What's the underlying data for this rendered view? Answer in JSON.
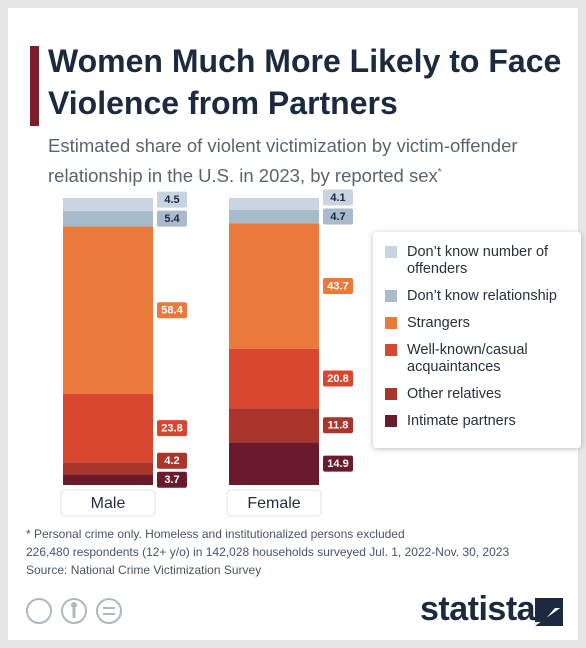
{
  "chart_data": {
    "type": "stacked_bar",
    "title": "Women Much More Likely to Face Violence from Partners",
    "subtitle": "Estimated share of violent victimization by victim-offender relationship in the U.S. in 2023, by reported sex",
    "subtitle_mark": "*",
    "categories": [
      "Male",
      "Female"
    ],
    "series": [
      {
        "name": "Don’t know number of offenders",
        "color": "#c8d4df",
        "values": [
          4.5,
          4.1
        ]
      },
      {
        "name": "Don’t know relationship",
        "color": "#a9bbca",
        "values": [
          5.4,
          4.7
        ]
      },
      {
        "name": "Strangers",
        "color": "#ea7a3b",
        "values": [
          58.4,
          43.7
        ]
      },
      {
        "name": "Well-known/casual acquaintances",
        "color": "#d9462f",
        "values": [
          23.8,
          20.8
        ]
      },
      {
        "name": "Other relatives",
        "color": "#a9352b",
        "values": [
          4.2,
          11.8
        ]
      },
      {
        "name": "Intimate partners",
        "color": "#6a1a2b",
        "values": [
          3.7,
          14.9
        ]
      }
    ],
    "legend": "right",
    "notes": [
      "* Personal crime only. Homeless and institutionalized persons excluded",
      "226,480 respondents (12+ y/o) in 142,028 households surveyed Jul. 1, 2022-Nov. 30, 2023",
      "Source: National Crime Victimization Survey"
    ],
    "brand": "statista"
  }
}
